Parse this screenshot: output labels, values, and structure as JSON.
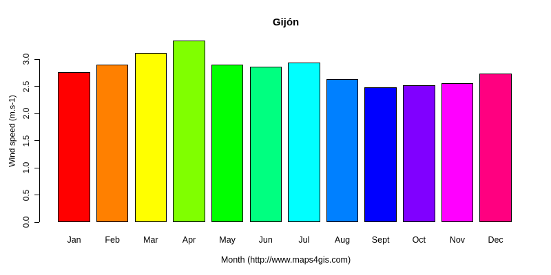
{
  "chart_data": {
    "type": "bar",
    "title": "Gijón",
    "xlabel": "Month (http://www.maps4gis.com)",
    "ylabel": "Wind speed (m.s-1)",
    "categories": [
      "Jan",
      "Feb",
      "Mar",
      "Apr",
      "May",
      "Jun",
      "Jul",
      "Aug",
      "Sept",
      "Oct",
      "Nov",
      "Dec"
    ],
    "values": [
      2.76,
      2.9,
      3.12,
      3.34,
      2.9,
      2.87,
      2.94,
      2.63,
      2.48,
      2.52,
      2.56,
      2.74
    ],
    "bar_colors": [
      "#FF0000",
      "#FF8000",
      "#FFFF00",
      "#80FF00",
      "#00FF00",
      "#00FF80",
      "#00FFFF",
      "#0080FF",
      "#0000FF",
      "#8000FF",
      "#FF00FF",
      "#FF0080"
    ],
    "bar_border_color": "#000000",
    "ylim": [
      0,
      3.0
    ],
    "yticks": [
      "0.0",
      "0.5",
      "1.0",
      "1.5",
      "2.0",
      "2.5",
      "3.0"
    ],
    "grid": false,
    "legend": "none"
  }
}
